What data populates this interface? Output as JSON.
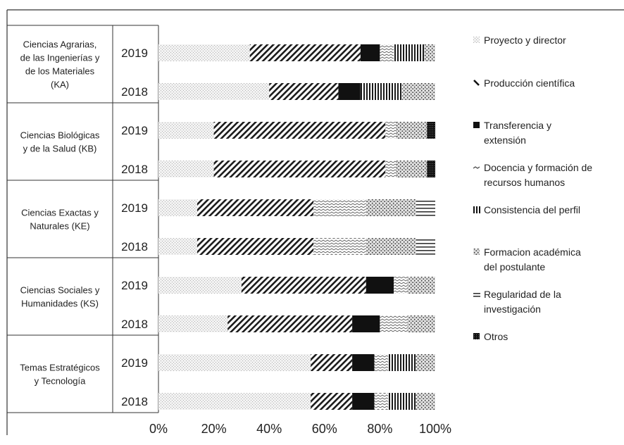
{
  "chart_data": {
    "type": "bar",
    "orientation": "horizontal",
    "stacked": true,
    "title": "",
    "xlabel": "",
    "ylabel": "",
    "xlim": [
      0,
      100
    ],
    "x_ticks": [
      "0%",
      "20%",
      "40%",
      "60%",
      "80%",
      "100%"
    ],
    "grid": false,
    "legend_position": "right",
    "series_names": [
      "Proyecto y director",
      "Producción científica",
      "Transferencia y extensión",
      "Docencia y formación de recursos humanos",
      "Consistencia del perfil",
      "Formacion académica del postulante",
      "Regularidad de la investigación",
      "Otros"
    ],
    "legend_lines": [
      [
        "Proyecto y director"
      ],
      [
        "Producción científica"
      ],
      [
        "Transferencia y",
        "extensión"
      ],
      [
        "Docencia y formación de",
        "recursos humanos"
      ],
      [
        "Consistencia del perfil"
      ],
      [
        "Formacion académica",
        "del postulante"
      ],
      [
        "Regularidad de la",
        "investigación"
      ],
      [
        "Otros"
      ]
    ],
    "legend_markers": [
      "pr",
      "pc",
      "te",
      "df",
      "cp",
      "fa",
      "ri",
      "ot"
    ],
    "groups": [
      {
        "label_lines": [
          "Ciencias Agrarias,",
          "de las Ingenierías y",
          "de los Materiales",
          "(KA)"
        ],
        "bars": [
          {
            "year": "2019",
            "values": [
              33,
              40,
              7,
              5,
              11,
              4,
              0,
              0
            ]
          },
          {
            "year": "2018",
            "values": [
              40,
              25,
              8,
              0,
              15,
              12,
              0,
              0
            ]
          }
        ]
      },
      {
        "label_lines": [
          "Ciencias Biológicas",
          "y de la Salud (KB)"
        ],
        "bars": [
          {
            "year": "2019",
            "values": [
              20,
              62,
              0,
              4,
              0,
              11,
              0,
              3
            ]
          },
          {
            "year": "2018",
            "values": [
              20,
              62,
              0,
              4,
              0,
              11,
              0,
              3
            ]
          }
        ]
      },
      {
        "label_lines": [
          "Ciencias Exactas y",
          "Naturales (KE)"
        ],
        "bars": [
          {
            "year": "2019",
            "values": [
              14,
              42,
              0,
              19,
              0,
              18,
              7,
              0
            ]
          },
          {
            "year": "2018",
            "values": [
              14,
              42,
              0,
              19,
              0,
              18,
              7,
              0
            ]
          }
        ]
      },
      {
        "label_lines": [
          "Ciencias Sociales y",
          "Humanidades (KS)"
        ],
        "bars": [
          {
            "year": "2019",
            "values": [
              30,
              45,
              10,
              5,
              0,
              10,
              0,
              0
            ]
          },
          {
            "year": "2018",
            "values": [
              25,
              45,
              10,
              10,
              0,
              10,
              0,
              0
            ]
          }
        ]
      },
      {
        "label_lines": [
          "Temas Estratégicos",
          "y Tecnología"
        ],
        "bars": [
          {
            "year": "2019",
            "values": [
              55,
              15,
              8,
              5,
              10,
              7,
              0,
              0
            ]
          },
          {
            "year": "2018",
            "values": [
              55,
              15,
              8,
              5,
              10,
              7,
              0,
              0
            ]
          }
        ]
      }
    ]
  }
}
